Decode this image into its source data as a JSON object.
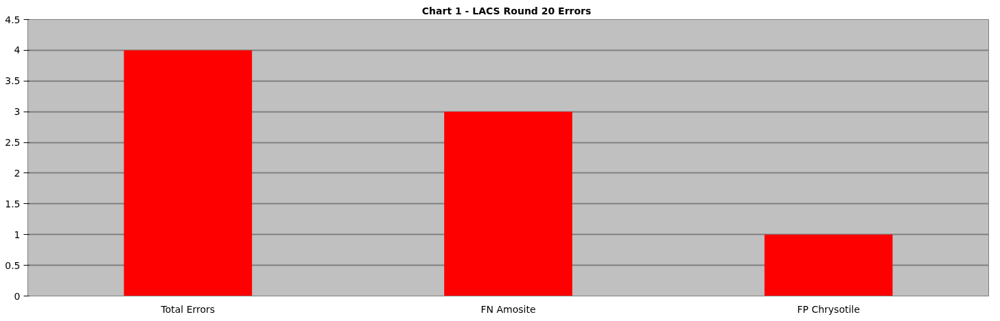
{
  "chart_data": {
    "type": "bar",
    "title": "Chart 1 - LACS Round 20  Errors",
    "categories": [
      "Total Errors",
      "FN Amosite",
      "FP Chrysotile"
    ],
    "values": [
      4,
      3,
      1
    ],
    "color": "#ff0000",
    "ylim": [
      0,
      4.5
    ],
    "yticks": [
      0,
      0.5,
      1,
      1.5,
      2,
      2.5,
      3,
      3.5,
      4,
      4.5
    ],
    "grid": "y"
  }
}
